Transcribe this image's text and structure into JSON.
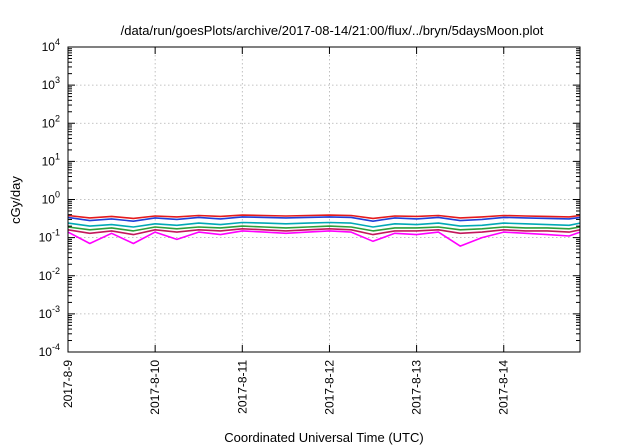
{
  "chart_data": {
    "type": "line",
    "title": "/data/run/goesPlots/archive/2017-08-14/21:00/flux/../bryn/5daysMoon.plot",
    "xlabel": "Coordinated Universal Time (UTC)",
    "ylabel": "cGy/day",
    "yscale": "log",
    "ylim": [
      0.0001,
      10000
    ],
    "xlim": [
      "2017-08-09T00:00",
      "2017-08-14T21:00"
    ],
    "grid": true,
    "x_ticks": [
      "2017-8-9",
      "2017-8-10",
      "2017-8-11",
      "2017-8-12",
      "2017-8-13",
      "2017-8-14"
    ],
    "x_tick_dates": [
      "2017-08-09T00:00",
      "2017-08-10T00:00",
      "2017-08-11T00:00",
      "2017-08-12T00:00",
      "2017-08-13T00:00",
      "2017-08-14T00:00"
    ],
    "y_ticks": [
      {
        "value": 0.0001,
        "base": "10",
        "exp": "-4"
      },
      {
        "value": 0.001,
        "base": "10",
        "exp": "-3"
      },
      {
        "value": 0.01,
        "base": "10",
        "exp": "-2"
      },
      {
        "value": 0.1,
        "base": "10",
        "exp": "-1"
      },
      {
        "value": 1,
        "base": "10",
        "exp": "0"
      },
      {
        "value": 10,
        "base": "10",
        "exp": "1"
      },
      {
        "value": 100,
        "base": "10",
        "exp": "2"
      },
      {
        "value": 1000,
        "base": "10",
        "exp": "3"
      },
      {
        "value": 10000,
        "base": "10",
        "exp": "4"
      }
    ],
    "x": [
      "2017-08-09T00:00",
      "2017-08-09T06:00",
      "2017-08-09T12:00",
      "2017-08-09T18:00",
      "2017-08-10T00:00",
      "2017-08-10T06:00",
      "2017-08-10T12:00",
      "2017-08-10T18:00",
      "2017-08-11T00:00",
      "2017-08-11T06:00",
      "2017-08-11T12:00",
      "2017-08-11T18:00",
      "2017-08-12T00:00",
      "2017-08-12T06:00",
      "2017-08-12T12:00",
      "2017-08-12T18:00",
      "2017-08-13T00:00",
      "2017-08-13T06:00",
      "2017-08-13T12:00",
      "2017-08-13T18:00",
      "2017-08-14T00:00",
      "2017-08-14T06:00",
      "2017-08-14T12:00",
      "2017-08-14T18:00",
      "2017-08-14T21:00"
    ],
    "series": [
      {
        "color": "#e41a1c",
        "values": [
          0.38,
          0.33,
          0.36,
          0.32,
          0.37,
          0.35,
          0.38,
          0.36,
          0.39,
          0.38,
          0.37,
          0.38,
          0.39,
          0.38,
          0.32,
          0.37,
          0.36,
          0.38,
          0.33,
          0.35,
          0.38,
          0.37,
          0.36,
          0.35,
          0.38
        ]
      },
      {
        "color": "#1f3fd9",
        "values": [
          0.34,
          0.28,
          0.31,
          0.27,
          0.33,
          0.3,
          0.34,
          0.31,
          0.35,
          0.34,
          0.33,
          0.34,
          0.35,
          0.34,
          0.27,
          0.33,
          0.31,
          0.34,
          0.28,
          0.3,
          0.34,
          0.33,
          0.32,
          0.31,
          0.34
        ]
      },
      {
        "color": "#00a9b5",
        "values": [
          0.24,
          0.2,
          0.22,
          0.19,
          0.23,
          0.21,
          0.24,
          0.22,
          0.25,
          0.24,
          0.23,
          0.24,
          0.25,
          0.24,
          0.19,
          0.23,
          0.22,
          0.24,
          0.2,
          0.21,
          0.24,
          0.23,
          0.22,
          0.21,
          0.24
        ]
      },
      {
        "color": "#2e9e3a",
        "values": [
          0.19,
          0.16,
          0.18,
          0.15,
          0.19,
          0.17,
          0.19,
          0.18,
          0.2,
          0.19,
          0.18,
          0.19,
          0.2,
          0.19,
          0.15,
          0.18,
          0.18,
          0.19,
          0.16,
          0.17,
          0.19,
          0.18,
          0.18,
          0.17,
          0.19
        ]
      },
      {
        "color": "#c2185b",
        "values": [
          0.16,
          0.13,
          0.15,
          0.12,
          0.16,
          0.14,
          0.16,
          0.15,
          0.17,
          0.16,
          0.15,
          0.16,
          0.17,
          0.16,
          0.12,
          0.15,
          0.15,
          0.16,
          0.13,
          0.14,
          0.16,
          0.15,
          0.15,
          0.14,
          0.16
        ]
      },
      {
        "color": "#ff00ff",
        "values": [
          0.14,
          0.07,
          0.13,
          0.07,
          0.14,
          0.09,
          0.14,
          0.12,
          0.15,
          0.14,
          0.13,
          0.14,
          0.15,
          0.14,
          0.08,
          0.13,
          0.12,
          0.14,
          0.06,
          0.1,
          0.14,
          0.13,
          0.12,
          0.11,
          0.14
        ]
      }
    ]
  }
}
